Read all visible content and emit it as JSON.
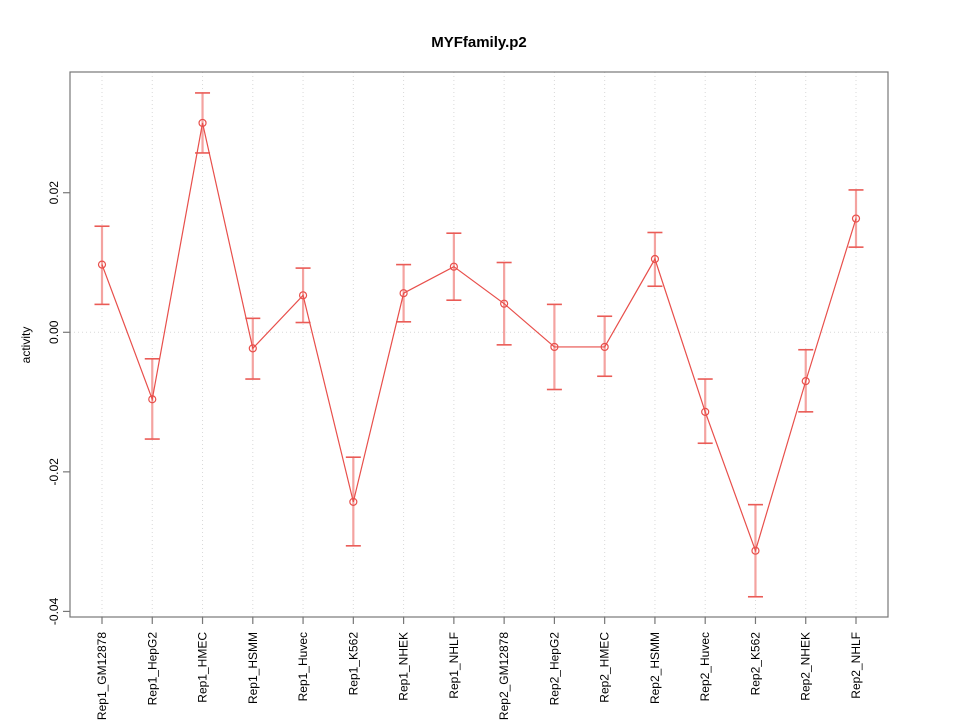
{
  "chart_data": {
    "type": "line",
    "title": "MYFfamily.p2",
    "xlabel": "",
    "ylabel": "activity",
    "categories": [
      "Rep1_GM12878",
      "Rep1_HepG2",
      "Rep1_HMEC",
      "Rep1_HSMM",
      "Rep1_Huvec",
      "Rep1_K562",
      "Rep1_NHEK",
      "Rep1_NHLF",
      "Rep2_GM12878",
      "Rep2_HepG2",
      "Rep2_HMEC",
      "Rep2_HSMM",
      "Rep2_Huvec",
      "Rep2_K562",
      "Rep2_NHEK",
      "Rep2_NHLF"
    ],
    "series": [
      {
        "name": "activity",
        "values": [
          0.0097,
          -0.0096,
          0.03,
          -0.0023,
          0.0053,
          -0.0243,
          0.0056,
          0.0094,
          0.0041,
          -0.0021,
          -0.0021,
          0.0105,
          -0.0114,
          -0.0313,
          -0.007,
          0.0163
        ],
        "error_low": [
          0.004,
          -0.0153,
          0.0257,
          -0.0067,
          0.0014,
          -0.0306,
          0.0015,
          0.0046,
          -0.0018,
          -0.0082,
          -0.0063,
          0.0066,
          -0.0159,
          -0.0379,
          -0.0114,
          0.0122
        ],
        "error_high": [
          0.0152,
          -0.0038,
          0.0343,
          0.002,
          0.0092,
          -0.0179,
          0.0097,
          0.0142,
          0.01,
          0.004,
          0.0023,
          0.0143,
          -0.0067,
          -0.0247,
          -0.0025,
          0.0204
        ]
      }
    ],
    "ylim": [
      -0.0408,
      0.0373
    ],
    "yticks": [
      0.02,
      0.0,
      -0.02,
      -0.04
    ],
    "ytick_labels": [
      "0.02",
      "0.00",
      "-0.02",
      "-0.04"
    ],
    "grid": {
      "vertical_gridlines": true,
      "zero_line_dotted": true,
      "legend": "none"
    },
    "colors": {
      "line": "#e84f4b",
      "point": "#e84f4b",
      "error_bar": "#f4a3a0",
      "error_cap": "#ea5b56",
      "grid": "#d9d9d9",
      "box": "#777777",
      "text": "#000000"
    }
  }
}
